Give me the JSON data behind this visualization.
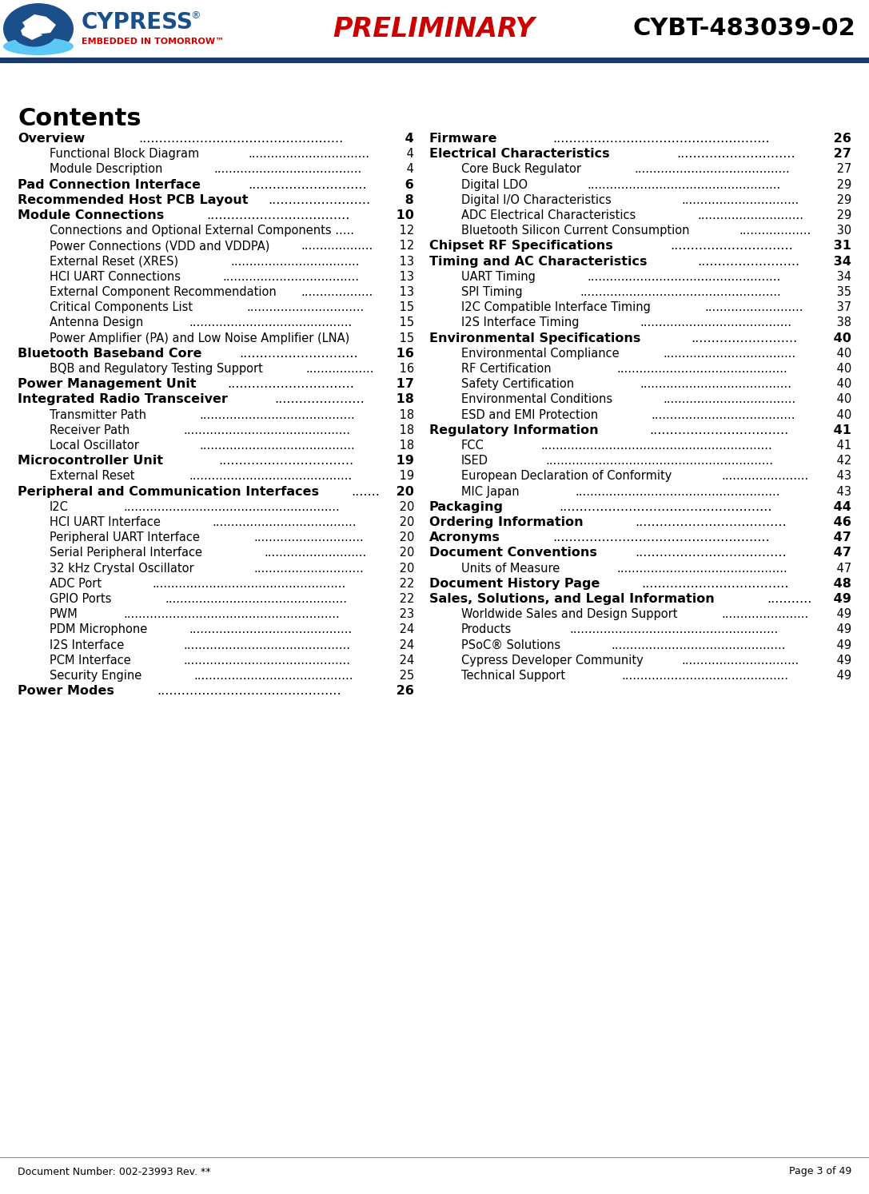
{
  "title_preliminary": "PRELIMINARY",
  "title_part": "CYBT-483039-02",
  "doc_number": "Document Number: 002-23993 Rev. **",
  "page_info": "Page 3 of 49",
  "header_line_color": "#1a3a6b",
  "background_color": "#ffffff",
  "contents_title": "Contents",
  "toc_left": [
    {
      "text": "Overview",
      "page": "4",
      "bold": true,
      "indent": 0
    },
    {
      "text": "Functional Block Diagram",
      "page": "4",
      "bold": false,
      "indent": 1
    },
    {
      "text": "Module Description",
      "page": "4",
      "bold": false,
      "indent": 1
    },
    {
      "text": "Pad Connection Interface",
      "page": "6",
      "bold": true,
      "indent": 0
    },
    {
      "text": "Recommended Host PCB Layout",
      "page": "8",
      "bold": true,
      "indent": 0
    },
    {
      "text": "Module Connections",
      "page": "10",
      "bold": true,
      "indent": 0
    },
    {
      "text": "Connections and Optional External Components ..... ",
      "page": "12",
      "bold": false,
      "indent": 1,
      "dots_override": true
    },
    {
      "text": "Power Connections (VDD and VDDPA)",
      "page": "12",
      "bold": false,
      "indent": 1
    },
    {
      "text": "External Reset (XRES)",
      "page": "13",
      "bold": false,
      "indent": 1
    },
    {
      "text": "HCI UART Connections",
      "page": "13",
      "bold": false,
      "indent": 1
    },
    {
      "text": "External Component Recommendation",
      "page": "13",
      "bold": false,
      "indent": 1
    },
    {
      "text": "Critical Components List",
      "page": "15",
      "bold": false,
      "indent": 1
    },
    {
      "text": "Antenna Design",
      "page": "15",
      "bold": false,
      "indent": 1
    },
    {
      "text": "Power Amplifier (PA) and Low Noise Amplifier (LNA) ",
      "page": "15",
      "bold": false,
      "indent": 1,
      "no_dots": true
    },
    {
      "text": "Bluetooth Baseband Core",
      "page": "16",
      "bold": true,
      "indent": 0
    },
    {
      "text": "BQB and Regulatory Testing Support",
      "page": "16",
      "bold": false,
      "indent": 1
    },
    {
      "text": "Power Management Unit",
      "page": "17",
      "bold": true,
      "indent": 0
    },
    {
      "text": "Integrated Radio Transceiver",
      "page": "18",
      "bold": true,
      "indent": 0
    },
    {
      "text": "Transmitter Path",
      "page": "18",
      "bold": false,
      "indent": 1
    },
    {
      "text": "Receiver Path",
      "page": "18",
      "bold": false,
      "indent": 1
    },
    {
      "text": "Local Oscillator",
      "page": "18",
      "bold": false,
      "indent": 1
    },
    {
      "text": "Microcontroller Unit",
      "page": "19",
      "bold": true,
      "indent": 0
    },
    {
      "text": "External Reset",
      "page": "19",
      "bold": false,
      "indent": 1
    },
    {
      "text": "Peripheral and Communication Interfaces",
      "page": "20",
      "bold": true,
      "indent": 0
    },
    {
      "text": "I2C",
      "page": "20",
      "bold": false,
      "indent": 1
    },
    {
      "text": "HCI UART Interface",
      "page": "20",
      "bold": false,
      "indent": 1
    },
    {
      "text": "Peripheral UART Interface",
      "page": "20",
      "bold": false,
      "indent": 1
    },
    {
      "text": "Serial Peripheral Interface",
      "page": "20",
      "bold": false,
      "indent": 1
    },
    {
      "text": "32 kHz Crystal Oscillator",
      "page": "20",
      "bold": false,
      "indent": 1
    },
    {
      "text": "ADC Port",
      "page": "22",
      "bold": false,
      "indent": 1
    },
    {
      "text": "GPIO Ports",
      "page": "22",
      "bold": false,
      "indent": 1
    },
    {
      "text": "PWM",
      "page": "23",
      "bold": false,
      "indent": 1
    },
    {
      "text": "PDM Microphone",
      "page": "24",
      "bold": false,
      "indent": 1
    },
    {
      "text": "I2S Interface",
      "page": "24",
      "bold": false,
      "indent": 1
    },
    {
      "text": "PCM Interface",
      "page": "24",
      "bold": false,
      "indent": 1
    },
    {
      "text": "Security Engine",
      "page": "25",
      "bold": false,
      "indent": 1
    },
    {
      "text": "Power Modes",
      "page": "26",
      "bold": true,
      "indent": 0
    }
  ],
  "toc_right": [
    {
      "text": "Firmware",
      "page": "26",
      "bold": true,
      "indent": 0
    },
    {
      "text": "Electrical Characteristics",
      "page": "27",
      "bold": true,
      "indent": 0
    },
    {
      "text": "Core Buck Regulator",
      "page": "27",
      "bold": false,
      "indent": 1
    },
    {
      "text": "Digital LDO",
      "page": "29",
      "bold": false,
      "indent": 1
    },
    {
      "text": "Digital I/O Characteristics",
      "page": "29",
      "bold": false,
      "indent": 1
    },
    {
      "text": "ADC Electrical Characteristics",
      "page": "29",
      "bold": false,
      "indent": 1
    },
    {
      "text": "Bluetooth Silicon Current Consumption",
      "page": "30",
      "bold": false,
      "indent": 1
    },
    {
      "text": "Chipset RF Specifications",
      "page": "31",
      "bold": true,
      "indent": 0
    },
    {
      "text": "Timing and AC Characteristics",
      "page": "34",
      "bold": true,
      "indent": 0
    },
    {
      "text": "UART Timing",
      "page": "34",
      "bold": false,
      "indent": 1
    },
    {
      "text": "SPI Timing",
      "page": "35",
      "bold": false,
      "indent": 1
    },
    {
      "text": "I2C Compatible Interface Timing",
      "page": "37",
      "bold": false,
      "indent": 1
    },
    {
      "text": "I2S Interface Timing",
      "page": "38",
      "bold": false,
      "indent": 1
    },
    {
      "text": "Environmental Specifications",
      "page": "40",
      "bold": true,
      "indent": 0
    },
    {
      "text": "Environmental Compliance",
      "page": "40",
      "bold": false,
      "indent": 1
    },
    {
      "text": "RF Certification",
      "page": "40",
      "bold": false,
      "indent": 1
    },
    {
      "text": "Safety Certification",
      "page": "40",
      "bold": false,
      "indent": 1
    },
    {
      "text": "Environmental Conditions",
      "page": "40",
      "bold": false,
      "indent": 1
    },
    {
      "text": "ESD and EMI Protection",
      "page": "40",
      "bold": false,
      "indent": 1
    },
    {
      "text": "Regulatory Information",
      "page": "41",
      "bold": true,
      "indent": 0
    },
    {
      "text": "FCC",
      "page": "41",
      "bold": false,
      "indent": 1
    },
    {
      "text": "ISED",
      "page": "42",
      "bold": false,
      "indent": 1
    },
    {
      "text": "European Declaration of Conformity",
      "page": "43",
      "bold": false,
      "indent": 1
    },
    {
      "text": "MIC Japan",
      "page": "43",
      "bold": false,
      "indent": 1
    },
    {
      "text": "Packaging",
      "page": "44",
      "bold": true,
      "indent": 0
    },
    {
      "text": "Ordering Information",
      "page": "46",
      "bold": true,
      "indent": 0
    },
    {
      "text": "Acronyms",
      "page": "47",
      "bold": true,
      "indent": 0
    },
    {
      "text": "Document Conventions",
      "page": "47",
      "bold": true,
      "indent": 0
    },
    {
      "text": "Units of Measure",
      "page": "47",
      "bold": false,
      "indent": 1
    },
    {
      "text": "Document History Page",
      "page": "48",
      "bold": true,
      "indent": 0
    },
    {
      "text": "Sales, Solutions, and Legal Information",
      "page": "49",
      "bold": true,
      "indent": 0
    },
    {
      "text": "Worldwide Sales and Design Support",
      "page": "49",
      "bold": false,
      "indent": 1
    },
    {
      "text": "Products",
      "page": "49",
      "bold": false,
      "indent": 1
    },
    {
      "text": "PSoC® Solutions",
      "page": "49",
      "bold": false,
      "indent": 1
    },
    {
      "text": "Cypress Developer Community",
      "page": "49",
      "bold": false,
      "indent": 1
    },
    {
      "text": "Technical Support",
      "page": "49",
      "bold": false,
      "indent": 1
    }
  ],
  "preliminary_color": "#cc0000",
  "part_color": "#000000",
  "header_line_color_hex": "#1a3a6b",
  "cypress_dark_blue": "#1a4f8a",
  "cypress_red": "#cc0000"
}
